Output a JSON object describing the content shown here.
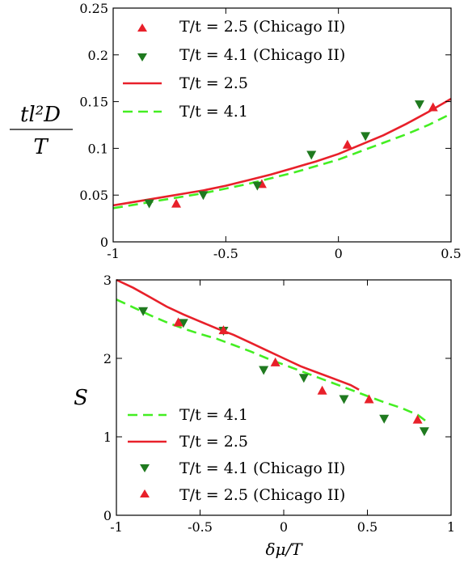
{
  "chart_data": [
    {
      "type": "line",
      "title": "",
      "xlabel": "",
      "ylabel_top": "tl²D",
      "ylabel_bottom": "T",
      "xlim": [
        -1,
        0.5
      ],
      "ylim": [
        0,
        0.25
      ],
      "xticks": [
        -1,
        -0.5,
        0,
        0.5
      ],
      "xtick_labels": [
        "-1",
        "-0.5",
        "0",
        "0.5"
      ],
      "yticks": [
        0,
        0.05,
        0.1,
        0.15,
        0.2,
        0.25
      ],
      "ytick_labels": [
        "0",
        "0.05",
        "0.1",
        "0.15",
        "0.2",
        "0.25"
      ],
      "grid": false,
      "legend_position": "top-left",
      "series": [
        {
          "name": "T/t = 2.5 (Chicago II)",
          "kind": "scatter",
          "marker": "triangle-up",
          "color": "#e8202a",
          "x": [
            -0.72,
            -0.34,
            0.04,
            0.42
          ],
          "y": [
            0.041,
            0.062,
            0.104,
            0.144
          ]
        },
        {
          "name": "T/t = 4.1 (Chicago II)",
          "kind": "scatter",
          "marker": "triangle-down",
          "color": "#1f7a1f",
          "x": [
            -0.84,
            -0.6,
            -0.36,
            -0.12,
            0.12,
            0.36
          ],
          "y": [
            0.041,
            0.05,
            0.06,
            0.093,
            0.113,
            0.147
          ]
        },
        {
          "name": "T/t = 2.5",
          "kind": "line",
          "dash": "solid",
          "color": "#e8202a",
          "x": [
            -1,
            -0.9,
            -0.8,
            -0.7,
            -0.6,
            -0.5,
            -0.4,
            -0.3,
            -0.2,
            -0.1,
            0,
            0.1,
            0.2,
            0.3,
            0.4,
            0.5
          ],
          "y": [
            0.039,
            0.043,
            0.047,
            0.051,
            0.055,
            0.06,
            0.066,
            0.072,
            0.079,
            0.086,
            0.094,
            0.104,
            0.114,
            0.126,
            0.139,
            0.153
          ]
        },
        {
          "name": "T/t = 4.1",
          "kind": "line",
          "dash": "dashed",
          "color": "#44ee22",
          "x": [
            -1,
            -0.9,
            -0.8,
            -0.7,
            -0.6,
            -0.5,
            -0.4,
            -0.3,
            -0.2,
            -0.1,
            0,
            0.1,
            0.2,
            0.3,
            0.4,
            0.5
          ],
          "y": [
            0.036,
            0.04,
            0.044,
            0.048,
            0.052,
            0.057,
            0.062,
            0.068,
            0.074,
            0.081,
            0.088,
            0.097,
            0.106,
            0.115,
            0.125,
            0.137
          ]
        }
      ]
    },
    {
      "type": "line",
      "title": "",
      "xlabel": "δμ/T",
      "ylabel": "S",
      "xlim": [
        -1,
        1
      ],
      "ylim": [
        0,
        3
      ],
      "xticks": [
        -1,
        -0.5,
        0,
        0.5,
        1
      ],
      "xtick_labels": [
        "-1",
        "-0.5",
        "0",
        "0.5",
        "1"
      ],
      "yticks": [
        0,
        1,
        2,
        3
      ],
      "ytick_labels": [
        "0",
        "1",
        "2",
        "3"
      ],
      "grid": false,
      "legend_position": "bottom-left",
      "series": [
        {
          "name": "T/t = 4.1",
          "kind": "line",
          "dash": "dashed",
          "color": "#44ee22",
          "x": [
            -1,
            -0.9,
            -0.8,
            -0.7,
            -0.6,
            -0.5,
            -0.4,
            -0.3,
            -0.2,
            -0.1,
            0,
            0.1,
            0.2,
            0.3,
            0.4,
            0.5,
            0.6,
            0.7,
            0.8,
            0.85
          ],
          "y": [
            2.75,
            2.65,
            2.55,
            2.46,
            2.38,
            2.31,
            2.25,
            2.17,
            2.09,
            2.0,
            1.92,
            1.84,
            1.76,
            1.68,
            1.6,
            1.52,
            1.44,
            1.37,
            1.28,
            1.2
          ]
        },
        {
          "name": "T/t = 2.5",
          "kind": "line",
          "dash": "solid",
          "color": "#e8202a",
          "x": [
            -1,
            -0.9,
            -0.8,
            -0.7,
            -0.6,
            -0.5,
            -0.4,
            -0.3,
            -0.2,
            -0.1,
            0,
            0.1,
            0.2,
            0.3,
            0.4,
            0.45
          ],
          "y": [
            3.0,
            2.9,
            2.78,
            2.66,
            2.56,
            2.47,
            2.38,
            2.3,
            2.2,
            2.1,
            2.0,
            1.9,
            1.82,
            1.74,
            1.66,
            1.6
          ]
        },
        {
          "name": "T/t = 4.1 (Chicago II)",
          "kind": "scatter",
          "marker": "triangle-down",
          "color": "#1f7a1f",
          "x": [
            -0.84,
            -0.6,
            -0.36,
            -0.12,
            0.12,
            0.36,
            0.6,
            0.84
          ],
          "y": [
            2.6,
            2.45,
            2.35,
            1.85,
            1.75,
            1.48,
            1.23,
            1.07
          ]
        },
        {
          "name": "T/t = 2.5 (Chicago II)",
          "kind": "scatter",
          "marker": "triangle-up",
          "color": "#e8202a",
          "x": [
            -0.63,
            -0.36,
            -0.05,
            0.23,
            0.51,
            0.8
          ],
          "y": [
            2.46,
            2.36,
            1.95,
            1.59,
            1.48,
            1.22
          ]
        }
      ]
    }
  ]
}
